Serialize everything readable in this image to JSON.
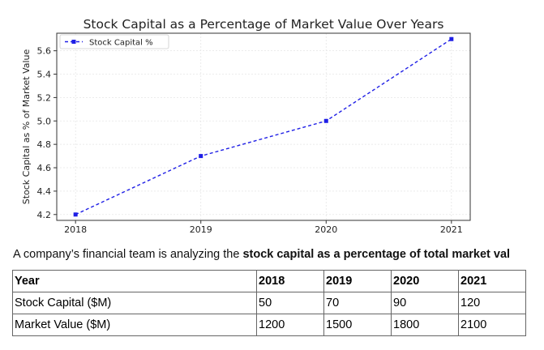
{
  "chart_data": {
    "type": "line",
    "title": "Stock Capital as a Percentage of Market Value Over Years",
    "xlabel": "",
    "ylabel": "Stock Capital as % of Market Value",
    "x": [
      2018,
      2019,
      2020,
      2021
    ],
    "series": [
      {
        "name": "Stock Capital %",
        "values": [
          4.2,
          4.7,
          5.0,
          5.7
        ],
        "color": "#1f1fe6"
      }
    ],
    "xlim": [
      2017.85,
      2021.15
    ],
    "ylim": [
      4.15,
      5.75
    ],
    "yticks": [
      4.2,
      4.4,
      4.6,
      4.8,
      5.0,
      5.2,
      5.4,
      5.6
    ],
    "ytick_labels": [
      "4.2",
      "4.4",
      "4.6",
      "4.8",
      "5.0",
      "5.2",
      "5.4",
      "5.6"
    ],
    "xtick_labels": [
      "2018",
      "2019",
      "2020",
      "2021"
    ],
    "grid": true,
    "legend_position": "top-left",
    "line_style": "dashed",
    "marker": "square"
  },
  "description": {
    "prefix": "A company’s financial team is analyzing the ",
    "bold": "stock capital as a percentage of total market val"
  },
  "table": {
    "headers": [
      "Year",
      "2018",
      "2019",
      "2020",
      "2021"
    ],
    "rows": [
      [
        "Stock Capital ($M)",
        "50",
        "70",
        "90",
        "120"
      ],
      [
        "Market Value ($M)",
        "1200",
        "1500",
        "1800",
        "2100"
      ]
    ]
  }
}
